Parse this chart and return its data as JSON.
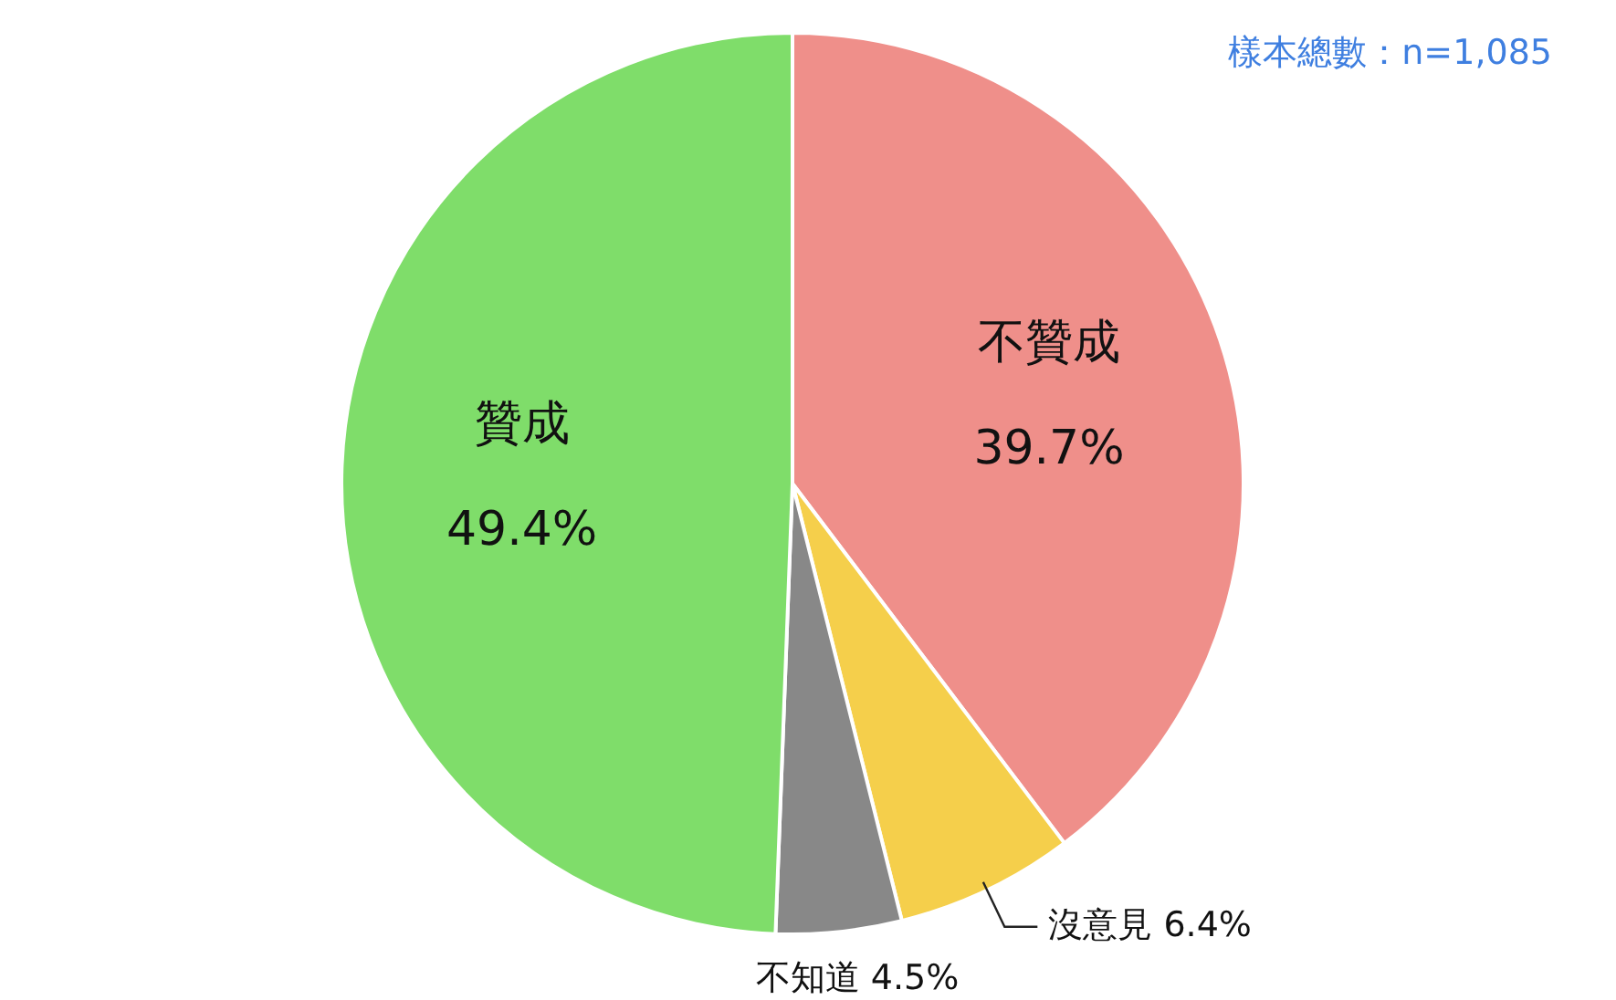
{
  "chart_data": {
    "type": "pie",
    "categories": [
      "不贊成",
      "沒意見",
      "不知道",
      "贊成"
    ],
    "values": [
      39.7,
      6.4,
      4.5,
      49.4
    ],
    "colors": [
      "#ef8f8a",
      "#f5cf4b",
      "#888888",
      "#7fdd6a"
    ],
    "value_labels": [
      "39.7%",
      "6.4%",
      "4.5%",
      "49.4%"
    ],
    "annotations": [
      "樣本總數：n=1,085"
    ]
  }
}
